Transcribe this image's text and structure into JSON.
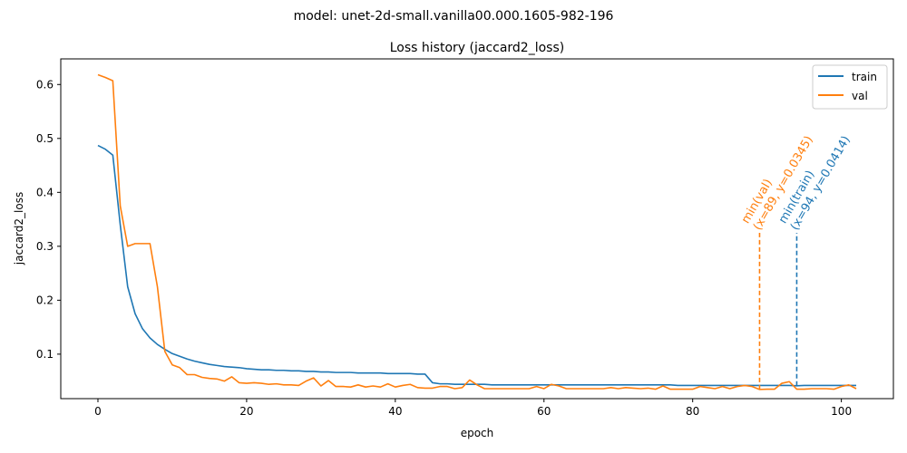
{
  "suptitle": "model: unet-2d-small.vanilla00.000.1605-982-196",
  "chart_data": {
    "type": "line",
    "title": "Loss history (jaccard2_loss)",
    "xlabel": "epoch",
    "ylabel": "jaccard2_loss",
    "xlim": [
      -5,
      107
    ],
    "ylim": [
      0.0175,
      0.6475
    ],
    "xticks": [
      0,
      20,
      40,
      60,
      80,
      100
    ],
    "yticks": [
      0.1,
      0.2,
      0.3,
      0.4,
      0.5,
      0.6
    ],
    "grid": false,
    "legend_position": "top-right",
    "series": [
      {
        "name": "train",
        "color": "#1f77b4",
        "x": [
          0,
          1,
          2,
          3,
          4,
          5,
          6,
          7,
          8,
          9,
          10,
          11,
          12,
          13,
          14,
          15,
          16,
          17,
          18,
          19,
          20,
          21,
          22,
          23,
          24,
          25,
          26,
          27,
          28,
          29,
          30,
          31,
          32,
          33,
          34,
          35,
          36,
          37,
          38,
          39,
          40,
          41,
          42,
          43,
          44,
          45,
          46,
          47,
          48,
          49,
          50,
          51,
          52,
          53,
          54,
          55,
          56,
          57,
          58,
          59,
          60,
          61,
          62,
          63,
          64,
          65,
          66,
          67,
          68,
          69,
          70,
          71,
          72,
          73,
          74,
          75,
          76,
          77,
          78,
          79,
          80,
          81,
          82,
          83,
          84,
          85,
          86,
          87,
          88,
          89,
          90,
          91,
          92,
          93,
          94,
          95,
          96,
          97,
          98,
          99,
          100,
          101,
          102
        ],
        "y": [
          0.487,
          0.48,
          0.469,
          0.34,
          0.225,
          0.175,
          0.147,
          0.13,
          0.118,
          0.109,
          0.101,
          0.096,
          0.091,
          0.087,
          0.084,
          0.081,
          0.079,
          0.077,
          0.076,
          0.075,
          0.073,
          0.072,
          0.071,
          0.071,
          0.07,
          0.07,
          0.069,
          0.069,
          0.068,
          0.068,
          0.067,
          0.067,
          0.066,
          0.066,
          0.066,
          0.065,
          0.065,
          0.065,
          0.065,
          0.064,
          0.064,
          0.064,
          0.064,
          0.063,
          0.063,
          0.047,
          0.045,
          0.045,
          0.044,
          0.044,
          0.044,
          0.044,
          0.044,
          0.043,
          0.043,
          0.043,
          0.043,
          0.043,
          0.043,
          0.043,
          0.043,
          0.043,
          0.043,
          0.043,
          0.043,
          0.043,
          0.043,
          0.043,
          0.043,
          0.043,
          0.043,
          0.043,
          0.043,
          0.043,
          0.043,
          0.043,
          0.043,
          0.043,
          0.042,
          0.042,
          0.042,
          0.042,
          0.042,
          0.042,
          0.042,
          0.042,
          0.042,
          0.042,
          0.042,
          0.042,
          0.042,
          0.042,
          0.042,
          0.042,
          0.0414,
          0.042,
          0.042,
          0.042,
          0.042,
          0.042,
          0.042,
          0.042,
          0.042
        ]
      },
      {
        "name": "val",
        "color": "#ff7f0e",
        "x": [
          0,
          1,
          2,
          3,
          4,
          5,
          6,
          7,
          8,
          9,
          10,
          11,
          12,
          13,
          14,
          15,
          16,
          17,
          18,
          19,
          20,
          21,
          22,
          23,
          24,
          25,
          26,
          27,
          28,
          29,
          30,
          31,
          32,
          33,
          34,
          35,
          36,
          37,
          38,
          39,
          40,
          41,
          42,
          43,
          44,
          45,
          46,
          47,
          48,
          49,
          50,
          51,
          52,
          53,
          54,
          55,
          56,
          57,
          58,
          59,
          60,
          61,
          62,
          63,
          64,
          65,
          66,
          67,
          68,
          69,
          70,
          71,
          72,
          73,
          74,
          75,
          76,
          77,
          78,
          79,
          80,
          81,
          82,
          83,
          84,
          85,
          86,
          87,
          88,
          89,
          90,
          91,
          92,
          93,
          94,
          95,
          96,
          97,
          98,
          99,
          100,
          101,
          102
        ],
        "y": [
          0.618,
          0.613,
          0.607,
          0.375,
          0.3,
          0.305,
          0.305,
          0.305,
          0.225,
          0.105,
          0.08,
          0.075,
          0.062,
          0.062,
          0.057,
          0.055,
          0.054,
          0.05,
          0.058,
          0.047,
          0.046,
          0.047,
          0.046,
          0.044,
          0.045,
          0.043,
          0.043,
          0.042,
          0.05,
          0.056,
          0.041,
          0.051,
          0.04,
          0.04,
          0.039,
          0.043,
          0.039,
          0.041,
          0.039,
          0.045,
          0.039,
          0.042,
          0.044,
          0.038,
          0.037,
          0.037,
          0.04,
          0.04,
          0.036,
          0.038,
          0.052,
          0.043,
          0.036,
          0.036,
          0.036,
          0.036,
          0.036,
          0.036,
          0.036,
          0.04,
          0.036,
          0.044,
          0.041,
          0.036,
          0.036,
          0.036,
          0.036,
          0.036,
          0.036,
          0.038,
          0.036,
          0.038,
          0.037,
          0.036,
          0.037,
          0.035,
          0.041,
          0.035,
          0.035,
          0.035,
          0.035,
          0.04,
          0.038,
          0.036,
          0.04,
          0.036,
          0.04,
          0.042,
          0.04,
          0.0345,
          0.035,
          0.035,
          0.046,
          0.049,
          0.035,
          0.035,
          0.036,
          0.036,
          0.036,
          0.035,
          0.04,
          0.043,
          0.036
        ]
      }
    ],
    "annotations": [
      {
        "series": "val",
        "x": 89,
        "y": 0.0345,
        "lines": [
          "min(val)",
          "(x=89, y=0.0345)"
        ]
      },
      {
        "series": "train",
        "x": 94,
        "y": 0.0414,
        "lines": [
          "min(train)",
          "(x=94, y=0.0414)"
        ]
      }
    ]
  }
}
